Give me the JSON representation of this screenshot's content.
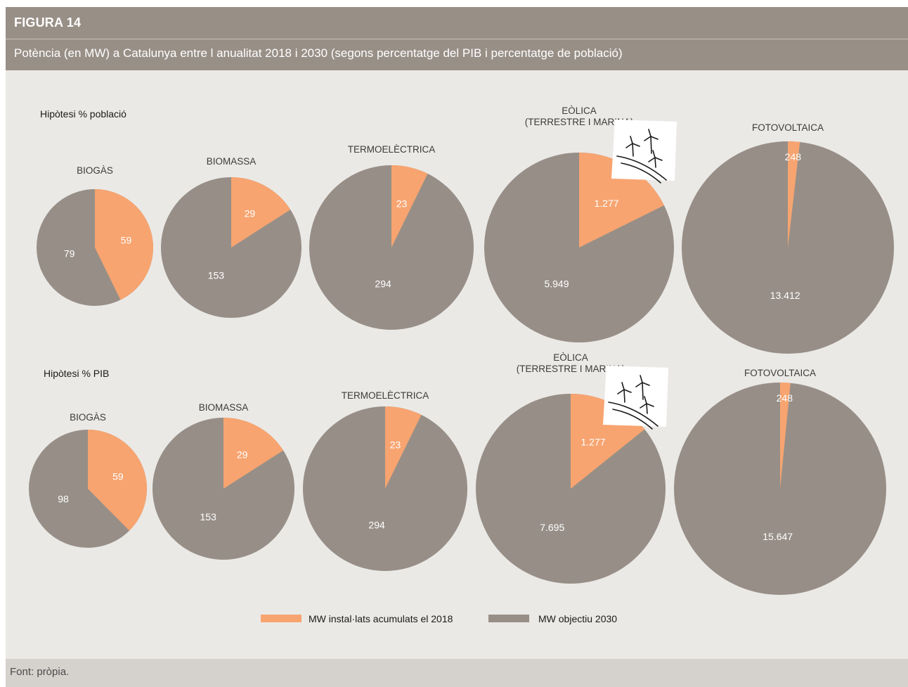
{
  "figure_label": "FIGURA 14",
  "title": "Potència (en MW) a Catalunya entre l anualitat 2018 i 2030 (segons percentatge del PIB i percentatge de població)",
  "source": "Font: pròpia.",
  "colors": {
    "installed": "#f7a470",
    "objective": "#978f87"
  },
  "legend": {
    "installed_label": "MW instal·lats acumulats el 2018",
    "objective_label": "MW objectiu 2030"
  },
  "icons": {
    "eolica": "wind-turbines-icon"
  },
  "chart_data": [
    {
      "type": "pie",
      "title": "Hipòtesi % població",
      "series_names": [
        "MW instal·lats acumulats el 2018",
        "MW objectiu 2030"
      ],
      "pies": [
        {
          "category": [
            "BIOGÀS"
          ],
          "installed": 59,
          "installed_label": "59",
          "objective": 79,
          "objective_label": "79"
        },
        {
          "category": [
            "BIOMASSA"
          ],
          "installed": 29,
          "installed_label": "29",
          "objective": 153,
          "objective_label": "153"
        },
        {
          "category": [
            "TERMOELÈCTRICA"
          ],
          "installed": 23,
          "installed_label": "23",
          "objective": 294,
          "objective_label": "294"
        },
        {
          "category": [
            "EÒLICA",
            "(TERRESTRE I MARINA)"
          ],
          "installed": 1277,
          "installed_label": "1.277",
          "objective": 5949,
          "objective_label": "5.949"
        },
        {
          "category": [
            "FOTOVOLTAICA"
          ],
          "installed": 248,
          "installed_label": "248",
          "objective": 13412,
          "objective_label": "13.412"
        }
      ]
    },
    {
      "type": "pie",
      "title": "Hipòtesi % PIB",
      "series_names": [
        "MW instal·lats acumulats el 2018",
        "MW objectiu 2030"
      ],
      "pies": [
        {
          "category": [
            "BIOGÀS"
          ],
          "installed": 59,
          "installed_label": "59",
          "objective": 98,
          "objective_label": "98"
        },
        {
          "category": [
            "BIOMASSA"
          ],
          "installed": 29,
          "installed_label": "29",
          "objective": 153,
          "objective_label": "153"
        },
        {
          "category": [
            "TERMOELÈCTRICA"
          ],
          "installed": 23,
          "installed_label": "23",
          "objective": 294,
          "objective_label": "294"
        },
        {
          "category": [
            "EÒLICA",
            "(TERRESTRE I MARINA)"
          ],
          "installed": 1277,
          "installed_label": "1.277",
          "objective": 7695,
          "objective_label": "7.695"
        },
        {
          "category": [
            "FOTOVOLTAICA"
          ],
          "installed": 248,
          "installed_label": "248",
          "objective": 15647,
          "objective_label": "15.647"
        }
      ]
    }
  ]
}
